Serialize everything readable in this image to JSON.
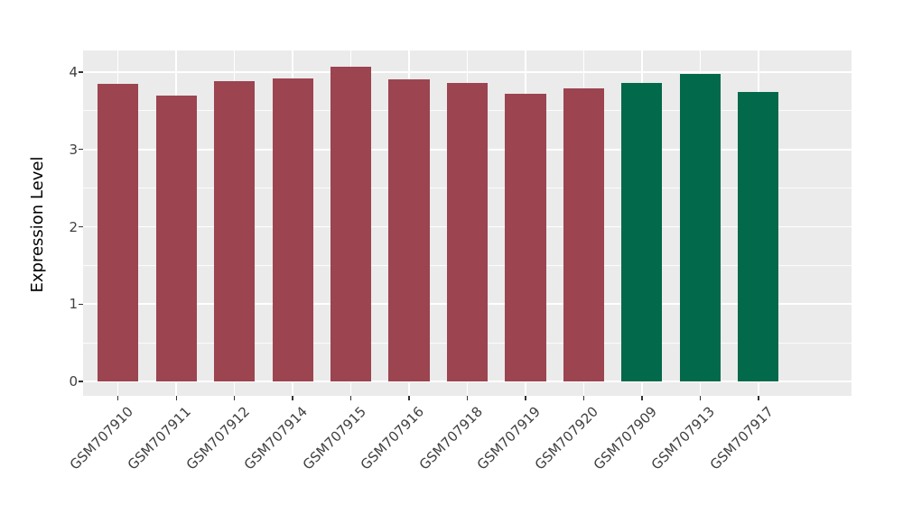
{
  "chart_data": {
    "type": "bar",
    "title": "",
    "ylabel": "Expression Level",
    "xlabel": "",
    "categories": [
      "GSM707910",
      "GSM707911",
      "GSM707912",
      "GSM707914",
      "GSM707915",
      "GSM707916",
      "GSM707918",
      "GSM707919",
      "GSM707920",
      "GSM707909",
      "GSM707913",
      "GSM707917"
    ],
    "values": [
      3.85,
      3.7,
      3.88,
      3.92,
      4.07,
      3.91,
      3.86,
      3.72,
      3.79,
      3.86,
      3.98,
      3.74
    ],
    "bar_colors": [
      "#9C4450",
      "#9C4450",
      "#9C4450",
      "#9C4450",
      "#9C4450",
      "#9C4450",
      "#9C4450",
      "#9C4450",
      "#9C4450",
      "#02694A",
      "#02694A",
      "#02694A"
    ],
    "yticks": [
      0,
      1,
      2,
      3,
      4
    ],
    "ylim": [
      0,
      4.28
    ],
    "grid": "major-and-minor-white-on-gray",
    "legend_position": "none",
    "colors": {
      "group_red": "#9C4450",
      "group_green": "#02694A",
      "panel_background": "#EBEBEB",
      "gridline": "#FFFFFF",
      "axis_text": "#404040",
      "axis_title": "#000000",
      "tick_mark": "#333333",
      "figure_background": "#FFFFFF"
    },
    "x_label_rotation_deg": 45
  }
}
